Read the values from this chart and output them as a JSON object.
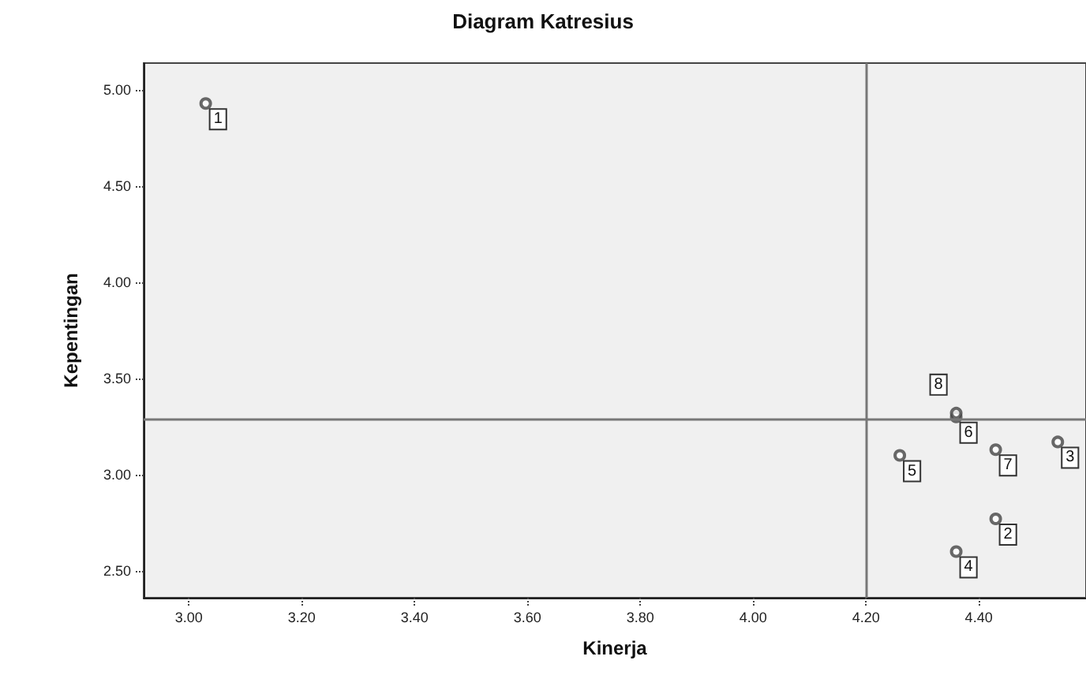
{
  "chart_data": {
    "type": "scatter",
    "title": "Diagram Katresius",
    "xlabel": "Kinerja",
    "ylabel": "Kepentingan",
    "x": [
      3.03,
      4.43,
      4.54,
      4.36,
      4.26,
      4.36,
      4.43,
      4.36
    ],
    "series": [
      {
        "color": "#444444",
        "values": [
          4.93,
          2.77,
          3.17,
          2.6,
          3.1,
          3.3,
          3.13,
          3.32
        ]
      }
    ],
    "xlim": [
      2.92,
      4.59
    ],
    "xticks": [
      {
        "value": 3.0,
        "label": "3.00"
      },
      {
        "value": 3.2,
        "label": "3.20"
      },
      {
        "value": 3.4,
        "label": "3.40"
      },
      {
        "value": 3.6,
        "label": "3.60"
      },
      {
        "value": 3.8,
        "label": "3.80"
      },
      {
        "value": 4.0,
        "label": "4.00"
      },
      {
        "value": 4.2,
        "label": "4.20"
      },
      {
        "value": 4.4,
        "label": "4.40"
      }
    ],
    "ylim": [
      2.36,
      5.14
    ],
    "yticks": [
      {
        "value": 2.5,
        "label": "2.50"
      },
      {
        "value": 3.0,
        "label": "3.00"
      },
      {
        "value": 3.5,
        "label": "3.50"
      },
      {
        "value": 4.0,
        "label": "4.00"
      },
      {
        "value": 4.5,
        "label": "4.50"
      },
      {
        "value": 5.0,
        "label": "5.00"
      }
    ],
    "ref_lines": [
      {
        "axis": "x",
        "value": 4.2,
        "color": "#777777"
      },
      {
        "axis": "y",
        "value": 3.29,
        "color": "#777777"
      }
    ],
    "annotations": [
      {
        "text": "1",
        "x": 3.03,
        "y": 4.93
      },
      {
        "text": "2",
        "x": 4.43,
        "y": 2.77
      },
      {
        "text": "3",
        "x": 4.54,
        "y": 3.17
      },
      {
        "text": "4",
        "x": 4.36,
        "y": 2.6
      },
      {
        "text": "5",
        "x": 4.26,
        "y": 3.1
      },
      {
        "text": "6",
        "x": 4.36,
        "y": 3.3
      },
      {
        "text": "7",
        "x": 4.43,
        "y": 3.13
      },
      {
        "text": "8",
        "x": 4.36,
        "y": 3.32
      }
    ],
    "marker": "circle",
    "grid": false
  }
}
